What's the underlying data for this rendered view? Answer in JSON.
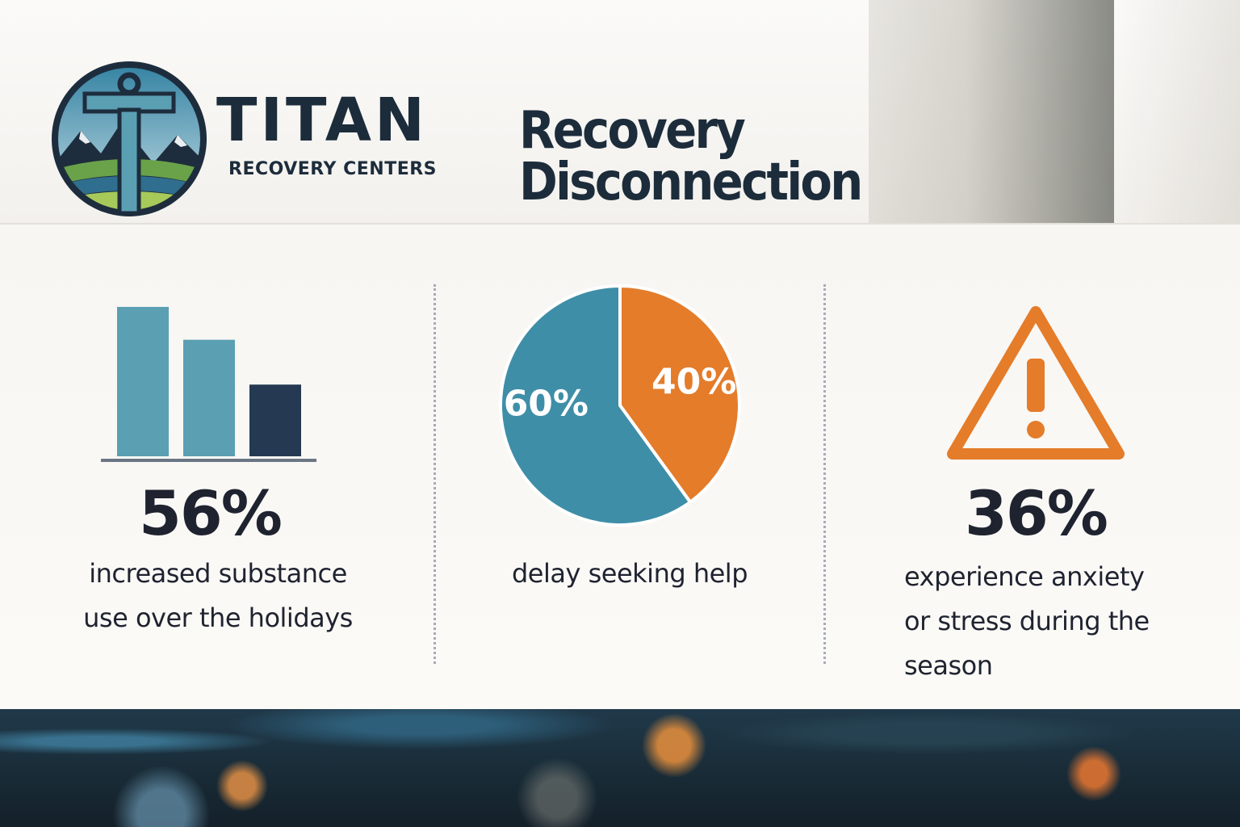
{
  "brand": {
    "name": "TITAN",
    "subtitle": "RECOVERY CENTERS",
    "logo_icon": "anchor-mountain-logo"
  },
  "title": "Recovery Disconnection",
  "colors": {
    "navy": "#1c2c3b",
    "teal": "#3f8ea8",
    "light_teal": "#5b9fb3",
    "dark_navy": "#253a52",
    "orange": "#e47c2a",
    "text": "#1f2330"
  },
  "stats": [
    {
      "icon": "bar-chart-icon",
      "value": "56%",
      "caption_lines": [
        "increased substance",
        "use over the holidays"
      ]
    },
    {
      "icon": "pie-chart-icon",
      "value": "",
      "caption_lines": [
        "delay seeking help"
      ]
    },
    {
      "icon": "warning-icon",
      "value": "36%",
      "caption_lines": [
        "experience anxiety",
        "or stress during the",
        "season"
      ]
    }
  ],
  "chart_data": [
    {
      "type": "bar",
      "categories": [
        "",
        "",
        ""
      ],
      "values": [
        100,
        78,
        48
      ],
      "colors": [
        "#5b9fb3",
        "#5b9fb3",
        "#253a52"
      ],
      "title": "",
      "xlabel": "",
      "ylabel": "",
      "ylim": [
        0,
        100
      ],
      "grid": false
    },
    {
      "type": "pie",
      "labels": [
        "40%",
        "60%"
      ],
      "values": [
        40,
        60
      ],
      "colors": [
        "#e47c2a",
        "#3f8ea8"
      ],
      "title": ""
    }
  ]
}
